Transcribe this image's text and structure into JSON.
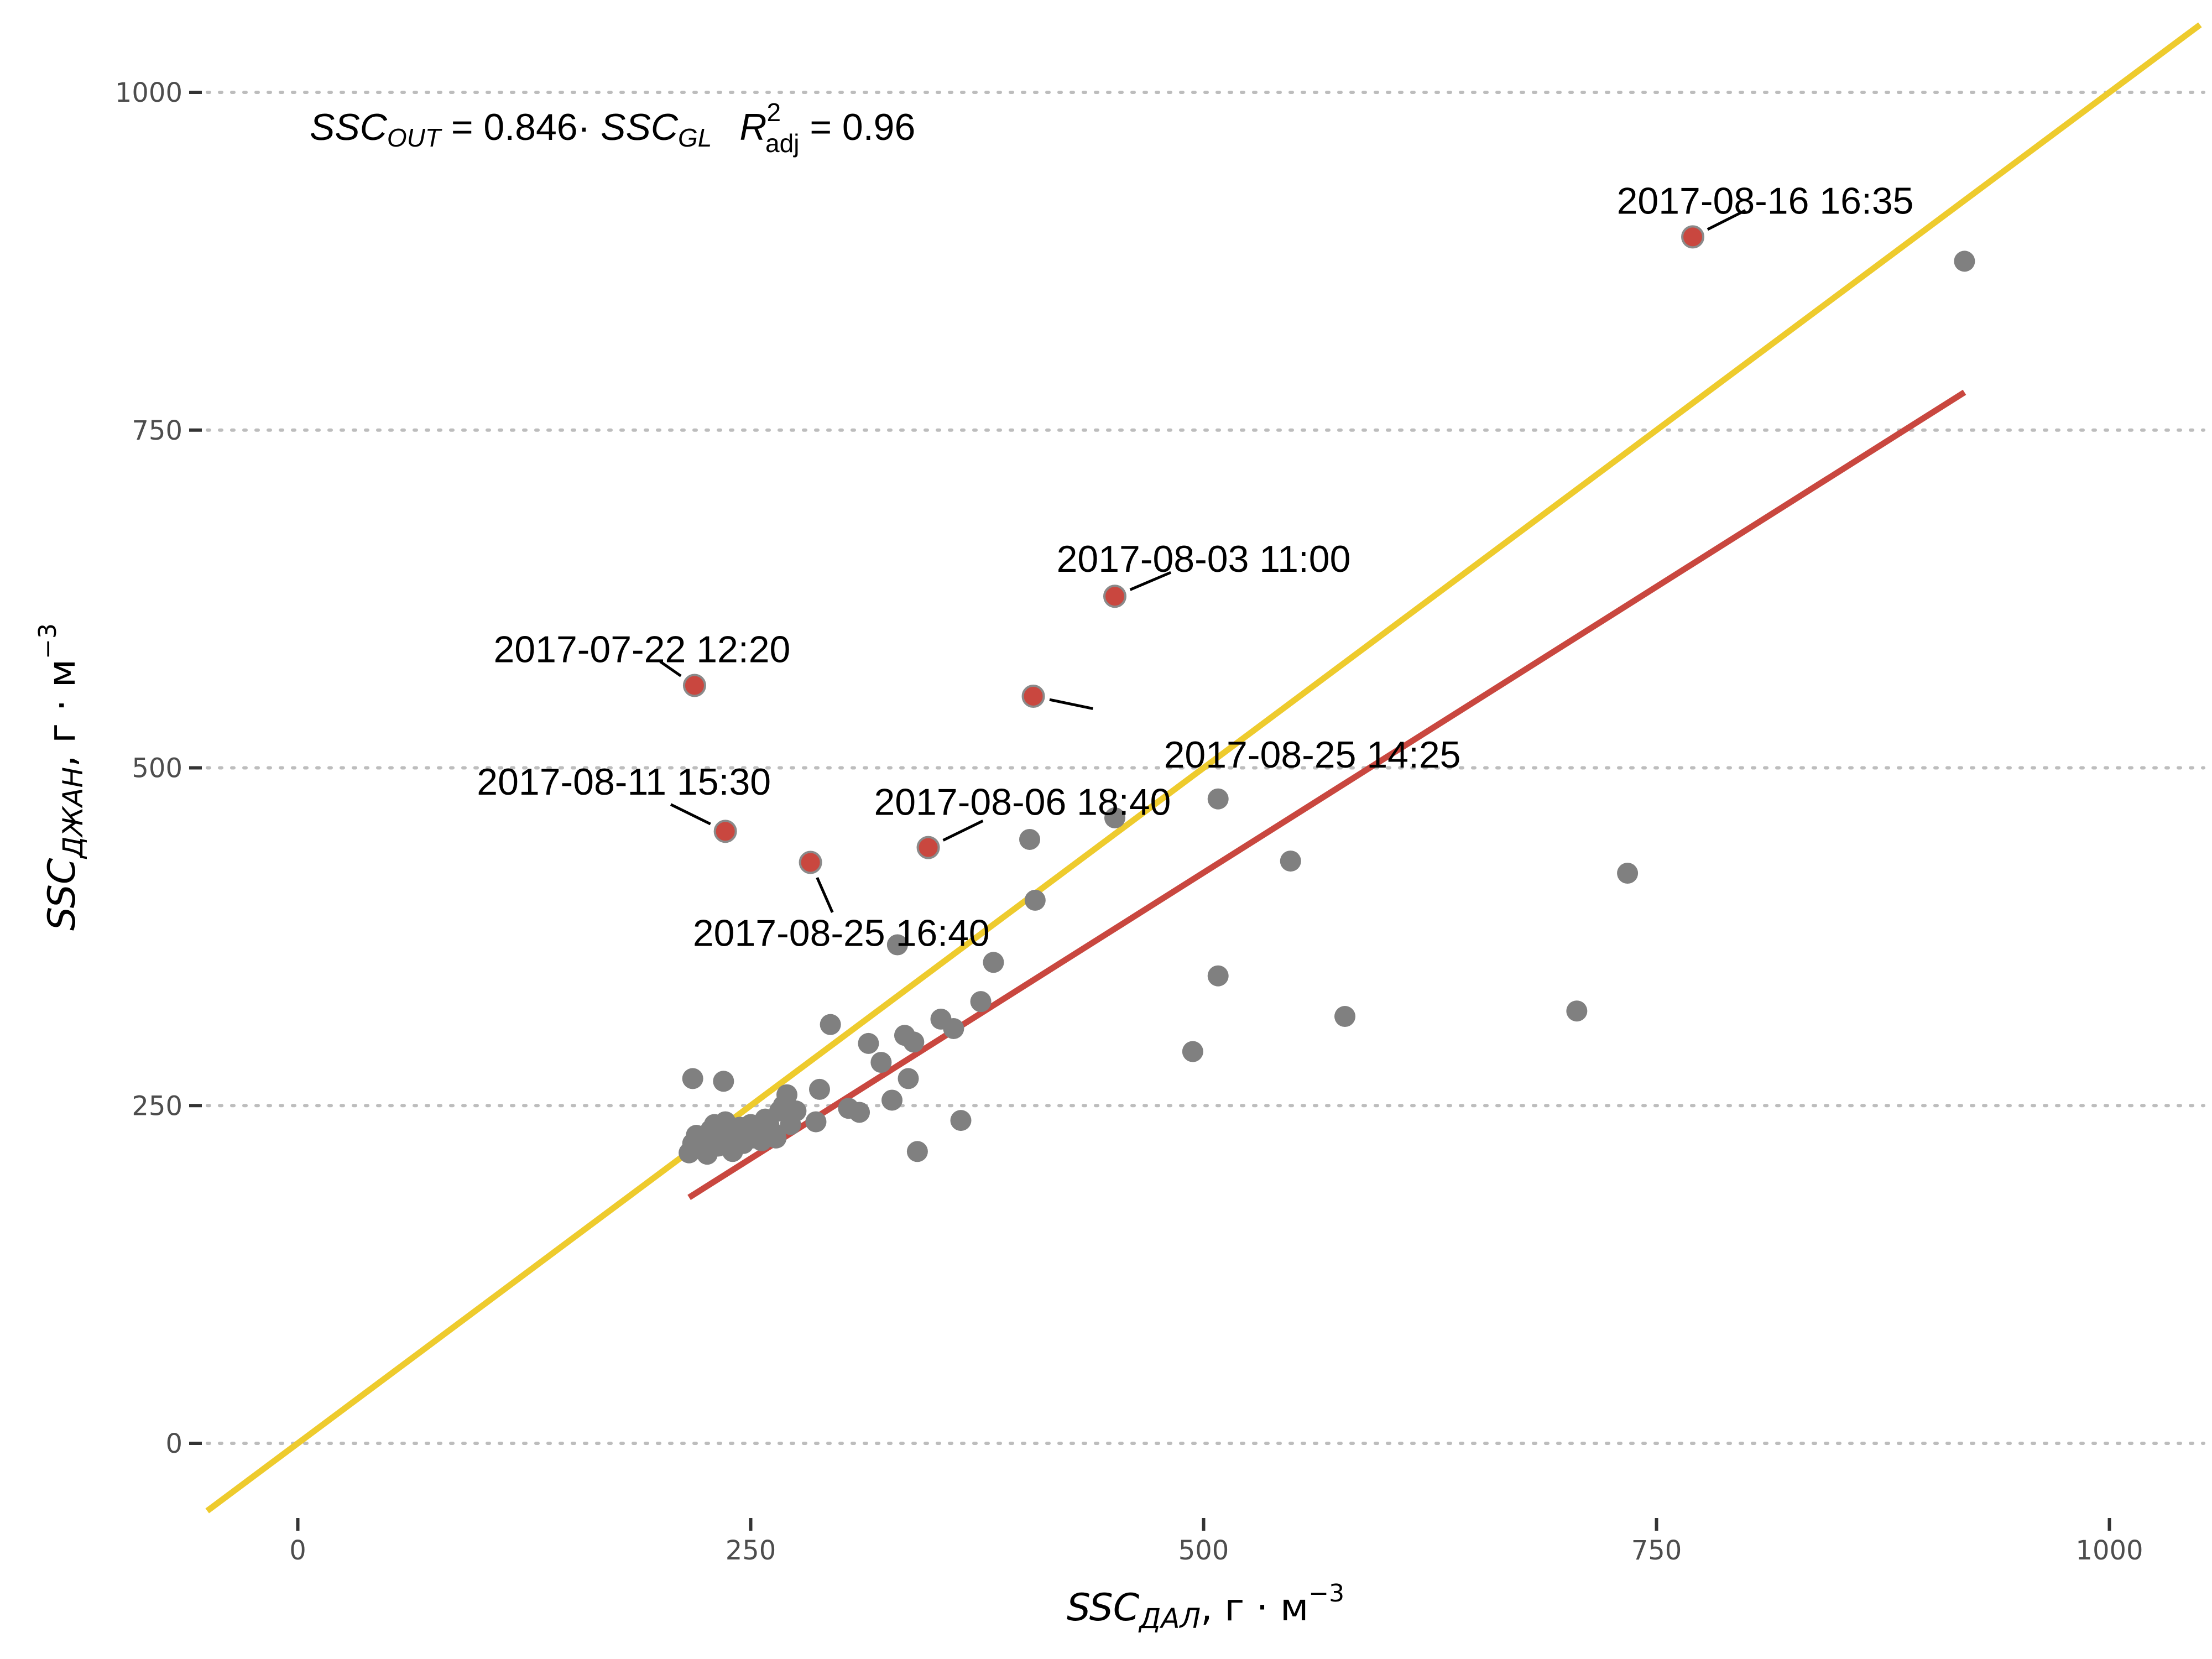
{
  "chart_data": {
    "type": "scatter",
    "title": "",
    "xlabel": {
      "main": "SSC",
      "sub": "ДАЛ",
      "units": ", г · м",
      "sup": "−3"
    },
    "ylabel": {
      "main": "SSC",
      "sub": "ДЖАН",
      "units": ", г · м",
      "sup": "−3"
    },
    "xlim": [
      -50,
      1050
    ],
    "ylim": [
      -50,
      1050
    ],
    "x_ticks": [
      0,
      250,
      500,
      750,
      1000
    ],
    "y_ticks": [
      0,
      250,
      500,
      750,
      1000
    ],
    "x_tick_labels": [
      "0",
      "250",
      "500",
      "750",
      "1000"
    ],
    "y_tick_labels": [
      "0",
      "250",
      "500",
      "750",
      "1000"
    ],
    "grid": "horizontal-dotted",
    "equation": {
      "lhs_main": "SSC",
      "lhs_sub": "OUT",
      "middle": " = 0.846· ",
      "rhs_main": "SSC",
      "rhs_sub": "GL",
      "r_main": "R",
      "r_sup": "2",
      "r_sub": "adj",
      "r_value": " = 0.96"
    },
    "colors": {
      "points": "#808080",
      "outliers": "#c9473f",
      "identity": "#eecb2d",
      "fit": "#c9473f"
    },
    "lines": [
      {
        "kind": "identity",
        "x": [
          -50,
          1050
        ],
        "y": [
          -50,
          1050
        ]
      },
      {
        "kind": "fit",
        "x": [
          216,
          920
        ],
        "y": [
          182,
          778
        ]
      }
    ],
    "points": [
      {
        "x": 216,
        "y": 215
      },
      {
        "x": 218,
        "y": 222
      },
      {
        "x": 220,
        "y": 228
      },
      {
        "x": 222,
        "y": 218
      },
      {
        "x": 224,
        "y": 226
      },
      {
        "x": 226,
        "y": 214
      },
      {
        "x": 228,
        "y": 232
      },
      {
        "x": 230,
        "y": 236
      },
      {
        "x": 232,
        "y": 220
      },
      {
        "x": 234,
        "y": 228
      },
      {
        "x": 236,
        "y": 238
      },
      {
        "x": 238,
        "y": 224
      },
      {
        "x": 240,
        "y": 216
      },
      {
        "x": 242,
        "y": 230
      },
      {
        "x": 244,
        "y": 234
      },
      {
        "x": 246,
        "y": 222
      },
      {
        "x": 248,
        "y": 228
      },
      {
        "x": 250,
        "y": 236
      },
      {
        "x": 252,
        "y": 226
      },
      {
        "x": 254,
        "y": 232
      },
      {
        "x": 256,
        "y": 224
      },
      {
        "x": 258,
        "y": 240
      },
      {
        "x": 260,
        "y": 236
      },
      {
        "x": 262,
        "y": 230
      },
      {
        "x": 264,
        "y": 226
      },
      {
        "x": 266,
        "y": 246
      },
      {
        "x": 268,
        "y": 250
      },
      {
        "x": 270,
        "y": 258
      },
      {
        "x": 272,
        "y": 236
      },
      {
        "x": 275,
        "y": 246
      },
      {
        "x": 218,
        "y": 270
      },
      {
        "x": 235,
        "y": 268
      },
      {
        "x": 286,
        "y": 238
      },
      {
        "x": 288,
        "y": 262
      },
      {
        "x": 294,
        "y": 310
      },
      {
        "x": 304,
        "y": 248
      },
      {
        "x": 310,
        "y": 245
      },
      {
        "x": 315,
        "y": 296
      },
      {
        "x": 322,
        "y": 282
      },
      {
        "x": 328,
        "y": 254
      },
      {
        "x": 331,
        "y": 369
      },
      {
        "x": 335,
        "y": 302
      },
      {
        "x": 337,
        "y": 270
      },
      {
        "x": 340,
        "y": 297
      },
      {
        "x": 342,
        "y": 216
      },
      {
        "x": 355,
        "y": 314
      },
      {
        "x": 362,
        "y": 307
      },
      {
        "x": 366,
        "y": 239
      },
      {
        "x": 377,
        "y": 327
      },
      {
        "x": 384,
        "y": 356
      },
      {
        "x": 404,
        "y": 447
      },
      {
        "x": 407,
        "y": 402
      },
      {
        "x": 451,
        "y": 463
      },
      {
        "x": 494,
        "y": 290
      },
      {
        "x": 508,
        "y": 477
      },
      {
        "x": 508,
        "y": 346
      },
      {
        "x": 548,
        "y": 431
      },
      {
        "x": 578,
        "y": 316
      },
      {
        "x": 706,
        "y": 320
      },
      {
        "x": 734,
        "y": 422
      },
      {
        "x": 920,
        "y": 875
      }
    ],
    "outliers": [
      {
        "x": 219,
        "y": 561,
        "label": "2017-07-22 12:20",
        "lx": 190,
        "ly": 588,
        "anchor": "middle"
      },
      {
        "x": 236,
        "y": 453,
        "label": "2017-08-11 15:30",
        "lx": 180,
        "ly": 490,
        "anchor": "middle"
      },
      {
        "x": 283,
        "y": 430,
        "label": "2017-08-25 16:40",
        "lx": 300,
        "ly": 378,
        "anchor": "middle"
      },
      {
        "x": 348,
        "y": 441,
        "label": "2017-08-06 18:40",
        "lx": 400,
        "ly": 475,
        "anchor": "middle"
      },
      {
        "x": 406,
        "y": 553,
        "label": "2017-08-25 14:25",
        "lx": 560,
        "ly": 510,
        "anchor": "middle"
      },
      {
        "x": 451,
        "y": 627,
        "label": "2017-08-03 11:00",
        "lx": 500,
        "ly": 655,
        "anchor": "middle"
      },
      {
        "x": 770,
        "y": 893,
        "label": "2017-08-16 16:35",
        "lx": 810,
        "ly": 920,
        "anchor": "middle"
      }
    ]
  }
}
